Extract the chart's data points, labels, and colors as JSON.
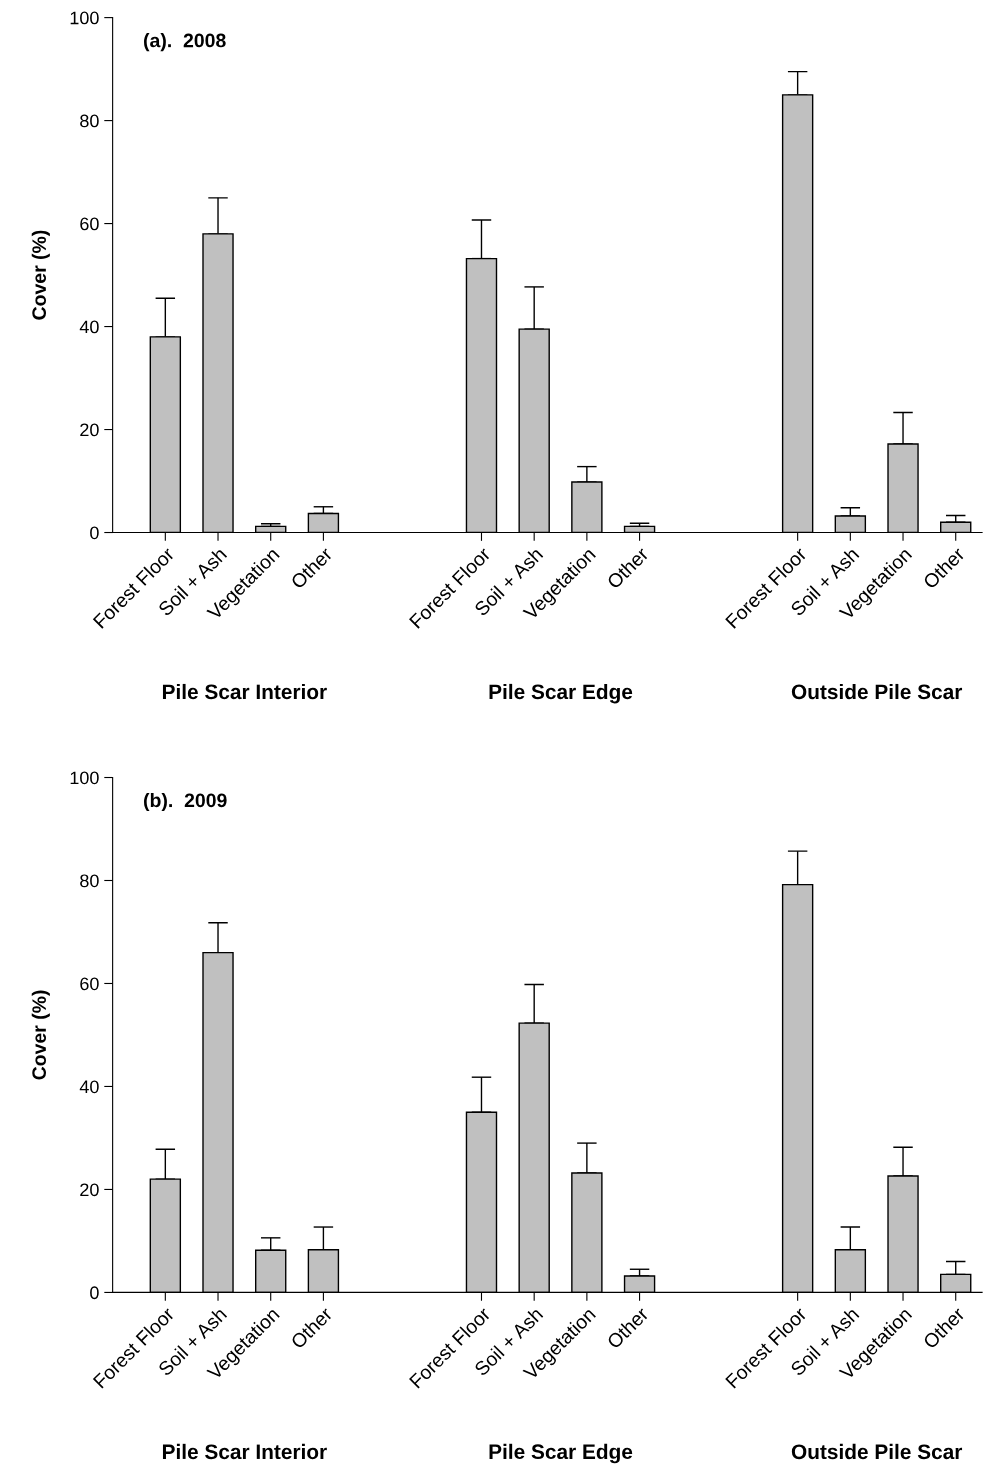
{
  "chart_data": [
    {
      "type": "bar",
      "title": "(a).  2008",
      "ylabel": "Cover (%)",
      "categories": [
        "Forest Floor",
        "Soil + Ash",
        "Vegetation",
        "Other",
        null,
        null,
        "Forest Floor",
        "Soil + Ash",
        "Vegetation",
        "Other",
        null,
        null,
        "Forest Floor",
        "Soil + Ash",
        "Vegetation",
        "Other"
      ],
      "values": [
        38,
        58,
        1.2,
        3.7,
        null,
        null,
        53.2,
        39.5,
        9.8,
        1.2,
        null,
        null,
        85,
        3.2,
        17.2,
        2
      ],
      "errors": [
        7.5,
        7,
        0.5,
        1.3,
        null,
        null,
        7.5,
        8.2,
        3,
        0.6,
        null,
        null,
        4.5,
        1.6,
        6.1,
        1.3
      ],
      "color": "#c0c0c0",
      "ylim": [
        0,
        100
      ],
      "yticks": [
        0,
        20,
        40,
        60,
        80,
        100
      ],
      "grid": false,
      "legend": false,
      "annotations": [
        "Pile Scar Interior",
        "Pile Scar Edge",
        "Outside Pile Scar"
      ]
    },
    {
      "type": "bar",
      "title": "(b).  2009",
      "ylabel": "Cover (%)",
      "categories": [
        "Forest Floor",
        "Soil + Ash",
        "Vegetation",
        "Other",
        null,
        null,
        "Forest Floor",
        "Soil + Ash",
        "Vegetation",
        "Other",
        null,
        null,
        "Forest Floor",
        "Soil + Ash",
        "Vegetation",
        "Other"
      ],
      "values": [
        22,
        66,
        8.2,
        8.3,
        null,
        null,
        35,
        52.3,
        23.2,
        3.2,
        null,
        null,
        79.2,
        8.3,
        22.6,
        3.5
      ],
      "errors": [
        5.8,
        5.8,
        2.4,
        4.4,
        null,
        null,
        6.8,
        7.5,
        5.8,
        1.3,
        null,
        null,
        6.5,
        4.4,
        5.6,
        2.5
      ],
      "color": "#c0c0c0",
      "ylim": [
        0,
        100
      ],
      "yticks": [
        0,
        20,
        40,
        60,
        80,
        100
      ],
      "grid": false,
      "legend": false,
      "annotations": [
        "Pile Scar Interior",
        "Pile Scar Edge",
        "Outside Pile Scar"
      ]
    }
  ]
}
